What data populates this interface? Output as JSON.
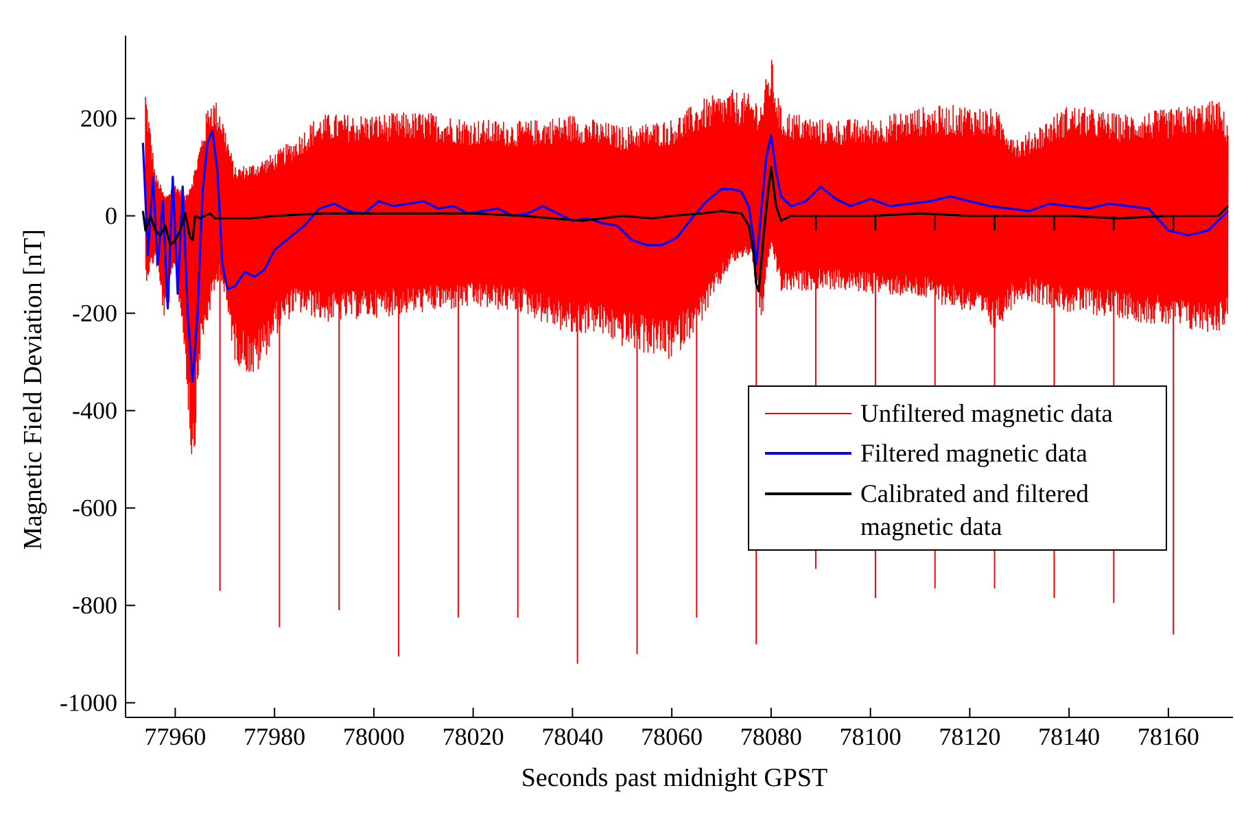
{
  "chart_data": {
    "type": "line",
    "title": "",
    "xlabel": "Seconds past midnight GPST",
    "ylabel": "Magnetic Field Deviation [nT]",
    "xlim": [
      77950,
      78173
    ],
    "ylim": [
      -1030,
      370
    ],
    "x_ticks": [
      77960,
      77980,
      78000,
      78020,
      78040,
      78060,
      78080,
      78100,
      78120,
      78140,
      78160
    ],
    "y_ticks": [
      -1000,
      -800,
      -600,
      -400,
      -200,
      0,
      200
    ],
    "grid": false,
    "legend_position": "center-right",
    "colors": {
      "unfiltered": "#ff0000",
      "filtered": "#0000ff",
      "calibrated": "#000000"
    },
    "series": [
      {
        "name": "Unfiltered magnetic data",
        "style": "oscillating envelope (upper and lower bounds shown) with periodic downward spikes",
        "x": [
          77954,
          77956,
          77958,
          77960,
          77962,
          77963.5,
          77965,
          77967,
          77969,
          77972,
          77976,
          77980,
          77984,
          77988,
          77990,
          78000,
          78010,
          78020,
          78030,
          78040,
          78044,
          78050,
          78060,
          78066,
          78072,
          78076,
          78078,
          78080,
          78082,
          78090,
          78100,
          78110,
          78120,
          78125,
          78130,
          78140,
          78150,
          78160,
          78165,
          78170,
          78172
        ],
        "upper": [
          270,
          90,
          40,
          70,
          40,
          80,
          150,
          250,
          230,
          100,
          110,
          130,
          160,
          200,
          210,
          210,
          215,
          200,
          195,
          210,
          200,
          185,
          200,
          240,
          260,
          250,
          240,
          330,
          220,
          200,
          200,
          225,
          230,
          220,
          160,
          230,
          210,
          220,
          230,
          240,
          200
        ],
        "lower": [
          -140,
          -90,
          -230,
          -100,
          -300,
          -550,
          -300,
          -200,
          -120,
          -300,
          -340,
          -250,
          -200,
          -210,
          -220,
          -210,
          -200,
          -190,
          -200,
          -250,
          -240,
          -270,
          -300,
          -220,
          -100,
          -80,
          -230,
          -60,
          -160,
          -150,
          -160,
          -170,
          -200,
          -240,
          -170,
          -200,
          -210,
          -230,
          -240,
          -240,
          -220
        ],
        "spikes": [
          {
            "x": 77969,
            "y": -770
          },
          {
            "x": 77981,
            "y": -845
          },
          {
            "x": 77993,
            "y": -810
          },
          {
            "x": 78005,
            "y": -905
          },
          {
            "x": 78017,
            "y": -825
          },
          {
            "x": 78029,
            "y": -825
          },
          {
            "x": 78041,
            "y": -920
          },
          {
            "x": 78053,
            "y": -900
          },
          {
            "x": 78065,
            "y": -825
          },
          {
            "x": 78077,
            "y": -880
          },
          {
            "x": 78089,
            "y": -725
          },
          {
            "x": 78101,
            "y": -785
          },
          {
            "x": 78113,
            "y": -765
          },
          {
            "x": 78125,
            "y": -765
          },
          {
            "x": 78137,
            "y": -785
          },
          {
            "x": 78149,
            "y": -795
          },
          {
            "x": 78161,
            "y": -860
          }
        ]
      },
      {
        "name": "Filtered magnetic data",
        "x": [
          77953.5,
          77954.5,
          77955.5,
          77956.5,
          77957.5,
          77958.5,
          77959.5,
          77960.5,
          77961.5,
          77962.5,
          77963.5,
          77964.5,
          77965.5,
          77966.5,
          77967.5,
          77968.5,
          77969.5,
          77970.5,
          77972,
          77974,
          77976,
          77978,
          77980,
          77983,
          77986,
          77989,
          77992,
          77995,
          77998,
          78001,
          78004,
          78007,
          78010,
          78013,
          78016,
          78019,
          78022,
          78025,
          78028,
          78031,
          78034,
          78037,
          78040,
          78043,
          78046,
          78049,
          78052,
          78055,
          78058,
          78061,
          78064,
          78067,
          78070,
          78072,
          78074,
          78075.5,
          78076.5,
          78077,
          78078,
          78079,
          78080,
          78081,
          78082,
          78084,
          78087,
          78090,
          78093,
          78096,
          78100,
          78104,
          78108,
          78112,
          78116,
          78120,
          78124,
          78128,
          78132,
          78136,
          78140,
          78144,
          78148,
          78152,
          78156,
          78160,
          78164,
          78168,
          78172
        ],
        "y": [
          150,
          -80,
          80,
          -100,
          30,
          -190,
          80,
          -160,
          60,
          -200,
          -340,
          -200,
          50,
          150,
          175,
          90,
          -100,
          -150,
          -145,
          -115,
          -125,
          -110,
          -70,
          -45,
          -20,
          15,
          25,
          10,
          5,
          30,
          20,
          25,
          30,
          15,
          20,
          5,
          10,
          15,
          0,
          5,
          20,
          5,
          -10,
          -5,
          -15,
          -20,
          -50,
          -60,
          -60,
          -45,
          -5,
          30,
          55,
          55,
          50,
          20,
          -50,
          -100,
          10,
          120,
          165,
          90,
          40,
          20,
          30,
          60,
          35,
          20,
          35,
          20,
          25,
          30,
          40,
          30,
          20,
          15,
          10,
          25,
          20,
          15,
          25,
          20,
          15,
          -30,
          -40,
          -30,
          10
        ]
      },
      {
        "name": "Calibrated and filtered magnetic data",
        "x": [
          77953.5,
          77954,
          77955,
          77956,
          77957,
          77958,
          77959,
          77960,
          77961,
          77962,
          77963,
          77963.5,
          77964,
          77965,
          77966,
          77967,
          77968,
          77970,
          77975,
          77980,
          77990,
          78000,
          78010,
          78020,
          78030,
          78036,
          78042,
          78046,
          78050,
          78056,
          78060,
          78066,
          78070,
          78074,
          78075.5,
          78076.5,
          78077,
          78077.5,
          78078.5,
          78079.5,
          78080,
          78081,
          78082,
          78084,
          78090,
          78100,
          78110,
          78120,
          78130,
          78140,
          78150,
          78160,
          78170,
          78172
        ],
        "y": [
          10,
          -30,
          0,
          -30,
          -40,
          -20,
          -60,
          -50,
          -30,
          5,
          -45,
          -50,
          0,
          -5,
          0,
          5,
          -5,
          -5,
          -5,
          0,
          5,
          5,
          5,
          5,
          0,
          -5,
          -10,
          -5,
          0,
          -5,
          0,
          5,
          10,
          5,
          -20,
          -80,
          -140,
          -155,
          -40,
          60,
          100,
          20,
          -10,
          0,
          0,
          0,
          5,
          0,
          0,
          0,
          -5,
          0,
          0,
          20
        ]
      }
    ]
  },
  "legend": {
    "items": [
      {
        "key": "unfiltered",
        "lines": [
          "Unfiltered magnetic data"
        ]
      },
      {
        "key": "filtered",
        "lines": [
          "Filtered magnetic data"
        ]
      },
      {
        "key": "calibrated",
        "lines": [
          "Calibrated and filtered",
          "magnetic data"
        ]
      }
    ]
  }
}
